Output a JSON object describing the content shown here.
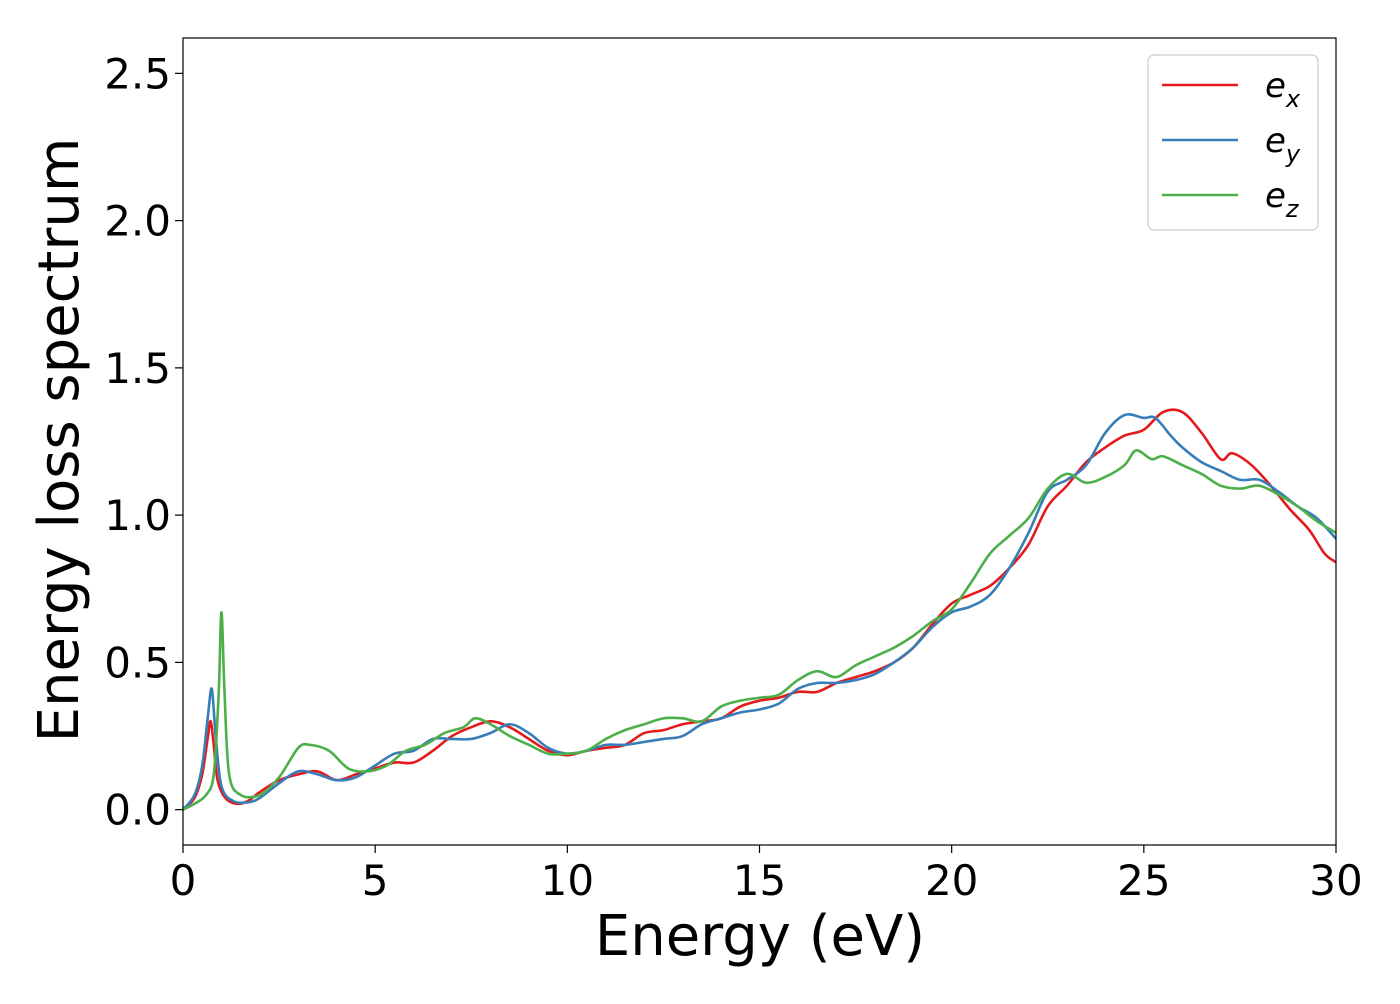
{
  "chart_data": {
    "type": "line",
    "xlabel": "Energy (eV)",
    "ylabel": "Energy loss spectrum",
    "xlim": [
      0,
      30
    ],
    "ylim": [
      -0.12,
      2.62
    ],
    "xticks": [
      0,
      5,
      10,
      15,
      20,
      25,
      30
    ],
    "yticks": [
      0.0,
      0.5,
      1.0,
      1.5,
      2.0,
      2.5
    ],
    "xtick_labels": [
      "0",
      "5",
      "10",
      "15",
      "20",
      "25",
      "30"
    ],
    "ytick_labels": [
      "0.0",
      "0.5",
      "1.0",
      "1.5",
      "2.0",
      "2.5"
    ],
    "grid": false,
    "legend": "top-right",
    "series": [
      {
        "name": "e_x",
        "label_base": "e",
        "label_sub": "x",
        "color": "#e41a1c",
        "points": [
          [
            0,
            0.0
          ],
          [
            0.3,
            0.04
          ],
          [
            0.5,
            0.12
          ],
          [
            0.65,
            0.25
          ],
          [
            0.72,
            0.3
          ],
          [
            0.8,
            0.22
          ],
          [
            0.9,
            0.1
          ],
          [
            1.1,
            0.04
          ],
          [
            1.4,
            0.02
          ],
          [
            1.7,
            0.03
          ],
          [
            2.0,
            0.06
          ],
          [
            2.5,
            0.1
          ],
          [
            3.0,
            0.12
          ],
          [
            3.5,
            0.13
          ],
          [
            4.0,
            0.1
          ],
          [
            4.5,
            0.12
          ],
          [
            5.0,
            0.14
          ],
          [
            5.5,
            0.16
          ],
          [
            6.0,
            0.16
          ],
          [
            6.5,
            0.2
          ],
          [
            7.0,
            0.25
          ],
          [
            7.5,
            0.28
          ],
          [
            8.0,
            0.3
          ],
          [
            8.5,
            0.28
          ],
          [
            9.0,
            0.24
          ],
          [
            9.5,
            0.2
          ],
          [
            10.0,
            0.185
          ],
          [
            10.5,
            0.2
          ],
          [
            11.0,
            0.21
          ],
          [
            11.5,
            0.22
          ],
          [
            12.0,
            0.26
          ],
          [
            12.5,
            0.27
          ],
          [
            13.0,
            0.29
          ],
          [
            13.5,
            0.3
          ],
          [
            14.0,
            0.31
          ],
          [
            14.5,
            0.35
          ],
          [
            15.0,
            0.37
          ],
          [
            15.5,
            0.38
          ],
          [
            16.0,
            0.4
          ],
          [
            16.5,
            0.4
          ],
          [
            17.0,
            0.43
          ],
          [
            17.5,
            0.45
          ],
          [
            18.0,
            0.47
          ],
          [
            18.5,
            0.5
          ],
          [
            19.0,
            0.55
          ],
          [
            19.5,
            0.63
          ],
          [
            20.0,
            0.7
          ],
          [
            20.5,
            0.73
          ],
          [
            21.0,
            0.76
          ],
          [
            21.5,
            0.82
          ],
          [
            22.0,
            0.9
          ],
          [
            22.5,
            1.03
          ],
          [
            23.0,
            1.1
          ],
          [
            23.5,
            1.18
          ],
          [
            24.0,
            1.23
          ],
          [
            24.5,
            1.27
          ],
          [
            25.0,
            1.29
          ],
          [
            25.5,
            1.35
          ],
          [
            26.0,
            1.35
          ],
          [
            26.5,
            1.28
          ],
          [
            27.0,
            1.19
          ],
          [
            27.3,
            1.21
          ],
          [
            27.8,
            1.17
          ],
          [
            28.3,
            1.1
          ],
          [
            28.8,
            1.02
          ],
          [
            29.3,
            0.95
          ],
          [
            29.7,
            0.87
          ],
          [
            30.0,
            0.84
          ]
        ]
      },
      {
        "name": "e_y",
        "label_base": "e",
        "label_sub": "y",
        "color": "#377eb8",
        "points": [
          [
            0,
            0.0
          ],
          [
            0.3,
            0.05
          ],
          [
            0.5,
            0.15
          ],
          [
            0.65,
            0.32
          ],
          [
            0.75,
            0.41
          ],
          [
            0.85,
            0.25
          ],
          [
            1.0,
            0.08
          ],
          [
            1.3,
            0.03
          ],
          [
            1.7,
            0.025
          ],
          [
            2.0,
            0.04
          ],
          [
            2.5,
            0.09
          ],
          [
            3.0,
            0.13
          ],
          [
            3.5,
            0.12
          ],
          [
            4.0,
            0.1
          ],
          [
            4.5,
            0.11
          ],
          [
            5.0,
            0.15
          ],
          [
            5.5,
            0.19
          ],
          [
            6.0,
            0.2
          ],
          [
            6.5,
            0.24
          ],
          [
            7.0,
            0.24
          ],
          [
            7.5,
            0.24
          ],
          [
            8.0,
            0.26
          ],
          [
            8.5,
            0.29
          ],
          [
            9.0,
            0.26
          ],
          [
            9.5,
            0.21
          ],
          [
            10.0,
            0.19
          ],
          [
            10.5,
            0.2
          ],
          [
            11.0,
            0.22
          ],
          [
            11.5,
            0.22
          ],
          [
            12.0,
            0.23
          ],
          [
            12.5,
            0.24
          ],
          [
            13.0,
            0.25
          ],
          [
            13.5,
            0.29
          ],
          [
            14.0,
            0.31
          ],
          [
            14.5,
            0.33
          ],
          [
            15.0,
            0.34
          ],
          [
            15.5,
            0.36
          ],
          [
            16.0,
            0.41
          ],
          [
            16.5,
            0.43
          ],
          [
            17.0,
            0.43
          ],
          [
            17.5,
            0.44
          ],
          [
            18.0,
            0.46
          ],
          [
            18.5,
            0.5
          ],
          [
            19.0,
            0.55
          ],
          [
            19.5,
            0.62
          ],
          [
            20.0,
            0.67
          ],
          [
            20.5,
            0.69
          ],
          [
            21.0,
            0.73
          ],
          [
            21.5,
            0.82
          ],
          [
            22.0,
            0.94
          ],
          [
            22.5,
            1.08
          ],
          [
            23.0,
            1.12
          ],
          [
            23.5,
            1.17
          ],
          [
            24.0,
            1.28
          ],
          [
            24.5,
            1.34
          ],
          [
            25.0,
            1.33
          ],
          [
            25.3,
            1.33
          ],
          [
            25.7,
            1.27
          ],
          [
            26.0,
            1.23
          ],
          [
            26.5,
            1.18
          ],
          [
            27.0,
            1.15
          ],
          [
            27.5,
            1.12
          ],
          [
            28.0,
            1.12
          ],
          [
            28.5,
            1.08
          ],
          [
            29.0,
            1.03
          ],
          [
            29.5,
            0.99
          ],
          [
            30.0,
            0.92
          ]
        ]
      },
      {
        "name": "e_z",
        "label_base": "e",
        "label_sub": "z",
        "color": "#4daf4a",
        "points": [
          [
            0,
            0.0
          ],
          [
            0.3,
            0.02
          ],
          [
            0.6,
            0.05
          ],
          [
            0.8,
            0.12
          ],
          [
            0.93,
            0.4
          ],
          [
            1.0,
            0.67
          ],
          [
            1.08,
            0.4
          ],
          [
            1.2,
            0.12
          ],
          [
            1.5,
            0.05
          ],
          [
            2.0,
            0.05
          ],
          [
            2.5,
            0.11
          ],
          [
            3.0,
            0.21
          ],
          [
            3.3,
            0.22
          ],
          [
            3.8,
            0.2
          ],
          [
            4.3,
            0.14
          ],
          [
            4.8,
            0.13
          ],
          [
            5.3,
            0.15
          ],
          [
            5.8,
            0.2
          ],
          [
            6.3,
            0.22
          ],
          [
            6.8,
            0.26
          ],
          [
            7.3,
            0.28
          ],
          [
            7.6,
            0.31
          ],
          [
            8.0,
            0.29
          ],
          [
            8.5,
            0.25
          ],
          [
            9.0,
            0.22
          ],
          [
            9.5,
            0.19
          ],
          [
            10.0,
            0.19
          ],
          [
            10.5,
            0.2
          ],
          [
            11.0,
            0.24
          ],
          [
            11.5,
            0.27
          ],
          [
            12.0,
            0.29
          ],
          [
            12.5,
            0.31
          ],
          [
            13.0,
            0.31
          ],
          [
            13.5,
            0.3
          ],
          [
            14.0,
            0.35
          ],
          [
            14.5,
            0.37
          ],
          [
            15.0,
            0.38
          ],
          [
            15.5,
            0.39
          ],
          [
            16.0,
            0.44
          ],
          [
            16.5,
            0.47
          ],
          [
            17.0,
            0.45
          ],
          [
            17.5,
            0.49
          ],
          [
            18.0,
            0.52
          ],
          [
            18.5,
            0.55
          ],
          [
            19.0,
            0.59
          ],
          [
            19.5,
            0.64
          ],
          [
            20.0,
            0.68
          ],
          [
            20.5,
            0.77
          ],
          [
            21.0,
            0.87
          ],
          [
            21.5,
            0.93
          ],
          [
            22.0,
            0.99
          ],
          [
            22.5,
            1.09
          ],
          [
            23.0,
            1.14
          ],
          [
            23.5,
            1.11
          ],
          [
            24.0,
            1.13
          ],
          [
            24.5,
            1.17
          ],
          [
            24.8,
            1.22
          ],
          [
            25.2,
            1.19
          ],
          [
            25.5,
            1.2
          ],
          [
            26.0,
            1.17
          ],
          [
            26.5,
            1.14
          ],
          [
            27.0,
            1.1
          ],
          [
            27.5,
            1.09
          ],
          [
            28.0,
            1.1
          ],
          [
            28.5,
            1.07
          ],
          [
            29.0,
            1.03
          ],
          [
            29.5,
            0.98
          ],
          [
            30.0,
            0.94
          ]
        ]
      }
    ]
  }
}
